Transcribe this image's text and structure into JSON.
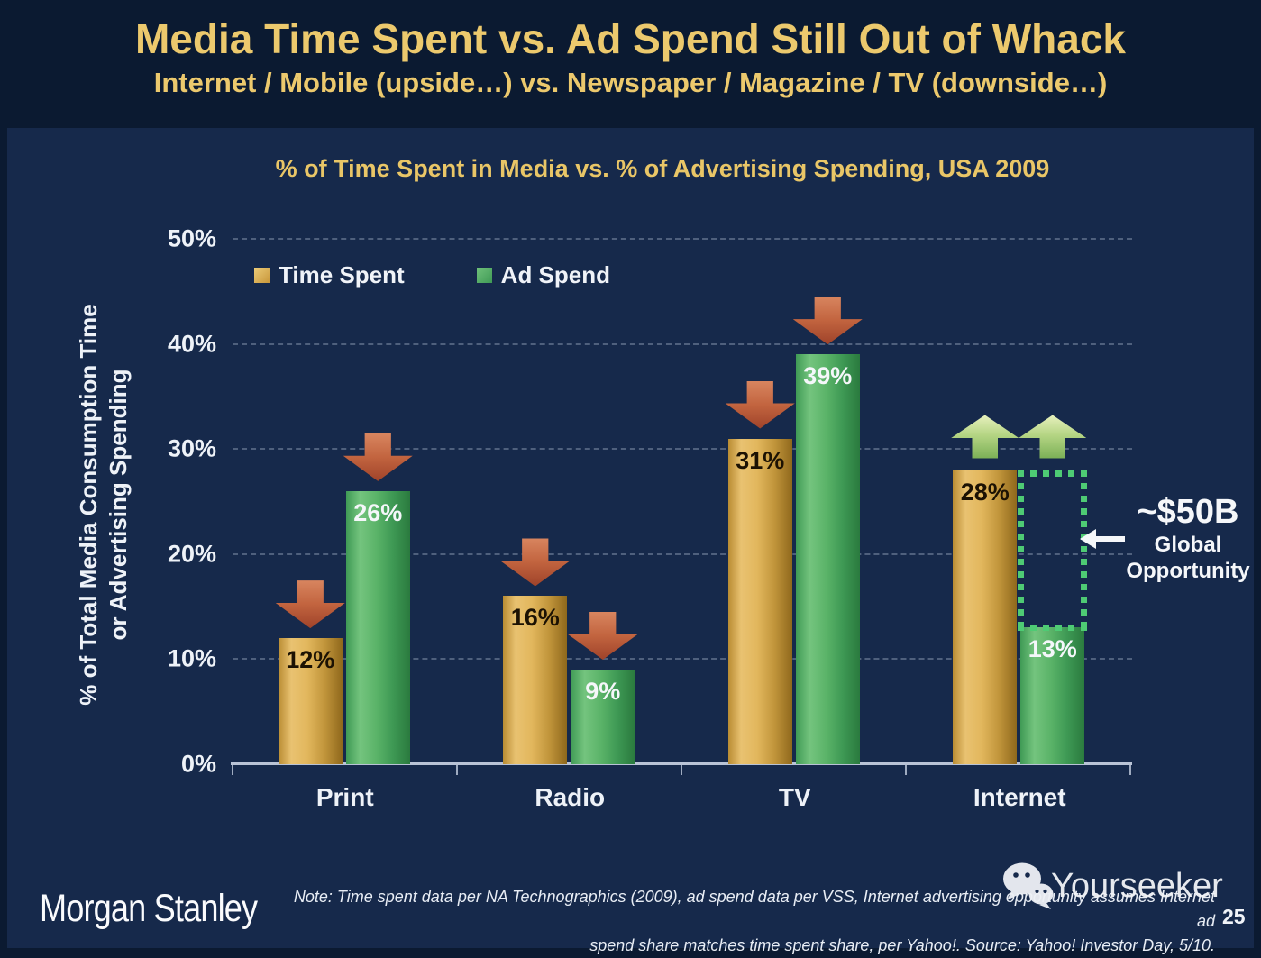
{
  "header": {
    "title": "Media Time Spent vs. Ad Spend Still Out of Whack",
    "subtitle": "Internet / Mobile (upside…) vs. Newspaper / Magazine / TV (downside…)"
  },
  "chart": {
    "title": "% of Time Spent in Media vs. % of Advertising Spending, USA 2009",
    "y_axis_title_line1": "% of Total Media Consumption Time",
    "y_axis_title_line2": "or Advertising Spending"
  },
  "chart_data": {
    "type": "bar",
    "title": "% of Time Spent in Media vs. % of Advertising Spending, USA 2009",
    "categories": [
      "Print",
      "Radio",
      "TV",
      "Internet"
    ],
    "series": [
      {
        "name": "Time Spent",
        "values": [
          12,
          16,
          31,
          28
        ],
        "color": "#d9a94e"
      },
      {
        "name": "Ad Spend",
        "values": [
          26,
          9,
          39,
          13
        ],
        "color": "#4ea963"
      }
    ],
    "value_suffix": "%",
    "ylabel": "% of Total Media Consumption Time or Advertising Spending",
    "ylim": [
      0,
      50
    ],
    "y_tick_labels": [
      "50%",
      "40%",
      "30%",
      "20%",
      "10%",
      "0%"
    ],
    "grid": "horizontal-dashed",
    "legend_position": "top-left",
    "bar_arrows": [
      [
        "down",
        "down"
      ],
      [
        "down",
        "down"
      ],
      [
        "down",
        "down"
      ],
      [
        "up",
        "up"
      ]
    ],
    "opportunity_box": {
      "category": "Internet",
      "series": "Ad Spend",
      "from_value": 28,
      "to_value": 13
    }
  },
  "annotation": {
    "headline": "~$50B",
    "line1": "Global",
    "line2": "Opportunity"
  },
  "footer": {
    "brand": "Morgan Stanley",
    "note_line1": "Note: Time spent data per NA Technographics (2009), ad spend data per VSS, Internet advertising opportunity assumes Internet ad",
    "note_line2": "spend share matches time spent share, per Yahoo!. Source: Yahoo! Investor Day, 5/10.",
    "page_number": "25",
    "watermark": "Yourseeker"
  },
  "colors": {
    "background_header": "#0b1a31",
    "background_main": "#16294b",
    "title_gold": "#ecc96d",
    "bar_gold": "#d9a94e",
    "bar_green": "#4ea963",
    "arrow_down_red": "#c2643f",
    "arrow_up_green": "#a9cf7d",
    "opportunity_dotted_green": "#4ecb74",
    "axis_line": "#b9c3d6",
    "text_white": "#f2f4f7"
  }
}
